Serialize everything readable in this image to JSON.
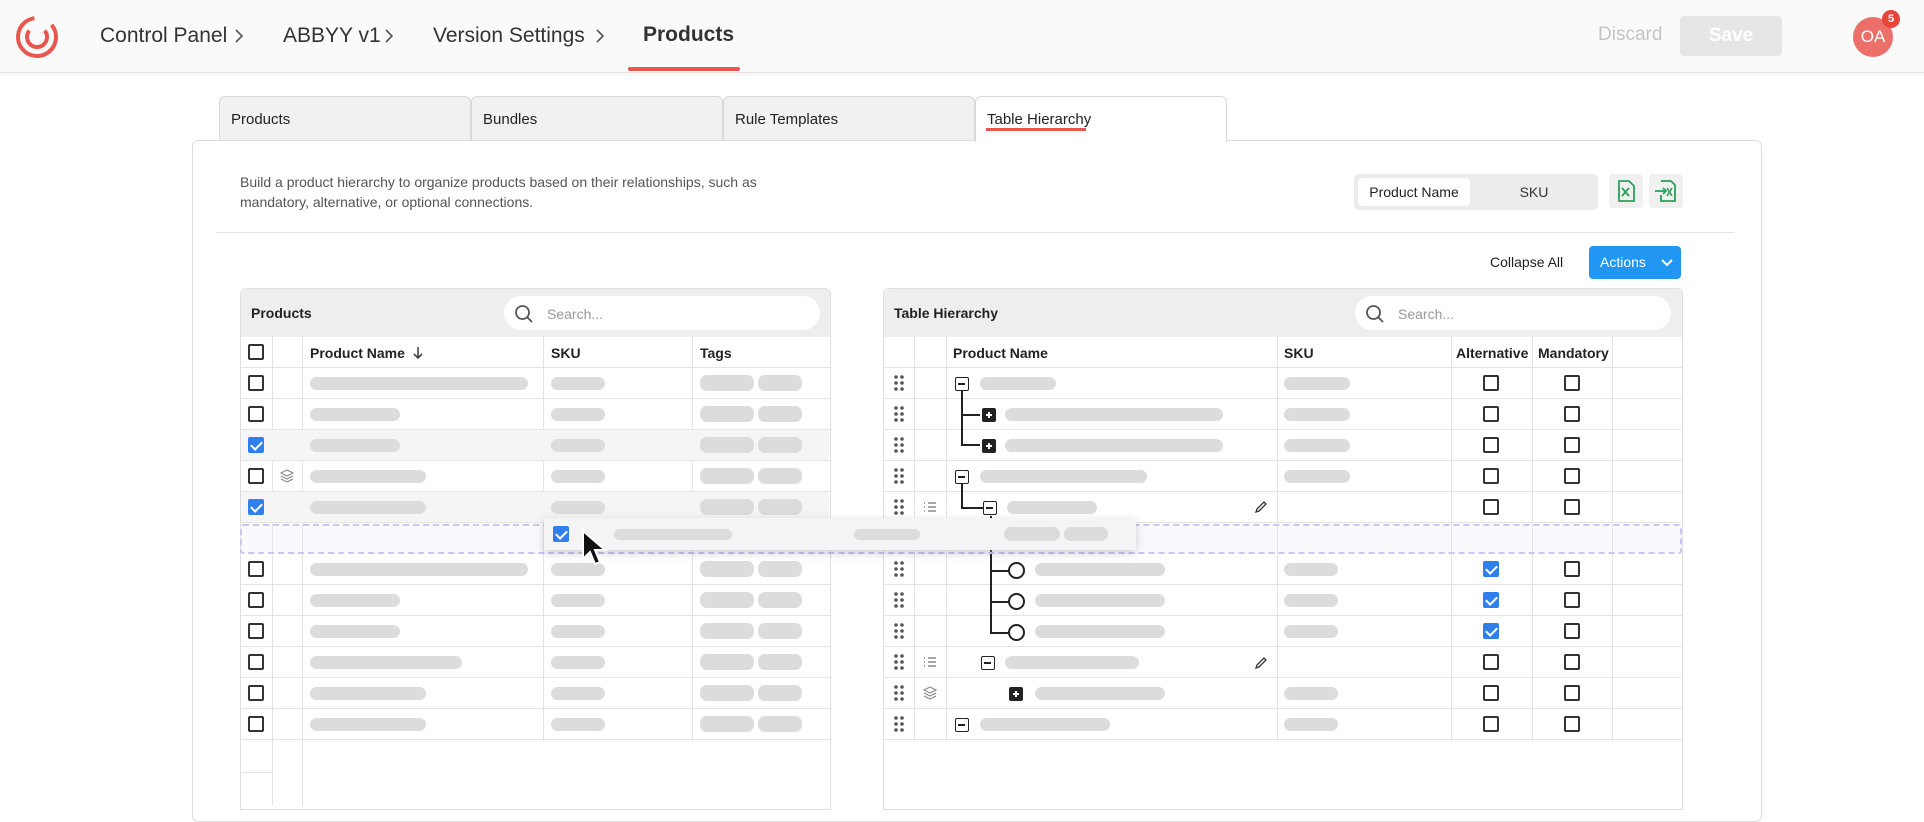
{
  "breadcrumb": {
    "items": [
      "Control Panel",
      "ABBYY v1",
      "Version Settings"
    ],
    "current": "Products"
  },
  "header": {
    "discard_label": "Discard",
    "save_label": "Save",
    "avatar_initials": "OA",
    "notification_count": "5"
  },
  "tabs": [
    "Products",
    "Bundles",
    "Rule Templates",
    "Table Hierarchy"
  ],
  "active_tab": "Table Hierarchy",
  "description": "Build a product hierarchy to organize products based on their relationships, such as mandatory, alternative, or optional connections.",
  "display_toggle": {
    "options": [
      "Product Name",
      "SKU"
    ],
    "selected": "Product Name"
  },
  "toolbar": {
    "collapse_all_label": "Collapse All",
    "actions_label": "Actions"
  },
  "products_panel": {
    "title": "Products",
    "search_placeholder": "Search...",
    "columns": [
      "Product Name",
      "SKU",
      "Tags"
    ],
    "sort_column": "Product Name",
    "rows": [
      {
        "checked": false,
        "bundle_icon": false
      },
      {
        "checked": false,
        "bundle_icon": false
      },
      {
        "checked": true,
        "bundle_icon": false
      },
      {
        "checked": false,
        "bundle_icon": true
      },
      {
        "checked": true,
        "bundle_icon": false
      },
      {
        "checked": false,
        "bundle_icon": false
      },
      {
        "checked": false,
        "bundle_icon": false
      },
      {
        "checked": false,
        "bundle_icon": false
      },
      {
        "checked": false,
        "bundle_icon": false
      },
      {
        "checked": false,
        "bundle_icon": false
      },
      {
        "checked": false,
        "bundle_icon": false
      }
    ]
  },
  "hierarchy_panel": {
    "title": "Table Hierarchy",
    "search_placeholder": "Search...",
    "columns": [
      "Product Name",
      "SKU",
      "Alternative",
      "Mandatory"
    ],
    "rows": [
      {
        "alternative": false,
        "mandatory": false
      },
      {
        "alternative": false,
        "mandatory": false
      },
      {
        "alternative": false,
        "mandatory": false
      },
      {
        "alternative": false,
        "mandatory": false
      },
      {
        "alternative": false,
        "mandatory": false
      },
      {
        "alternative": true,
        "mandatory": false
      },
      {
        "alternative": true,
        "mandatory": false
      },
      {
        "alternative": true,
        "mandatory": false
      },
      {
        "alternative": false,
        "mandatory": false
      },
      {
        "alternative": false,
        "mandatory": false
      },
      {
        "alternative": false,
        "mandatory": false
      }
    ]
  },
  "colors": {
    "accent": "#e8574f",
    "primary": "#2196f3",
    "checkbox": "#2f80ed"
  }
}
